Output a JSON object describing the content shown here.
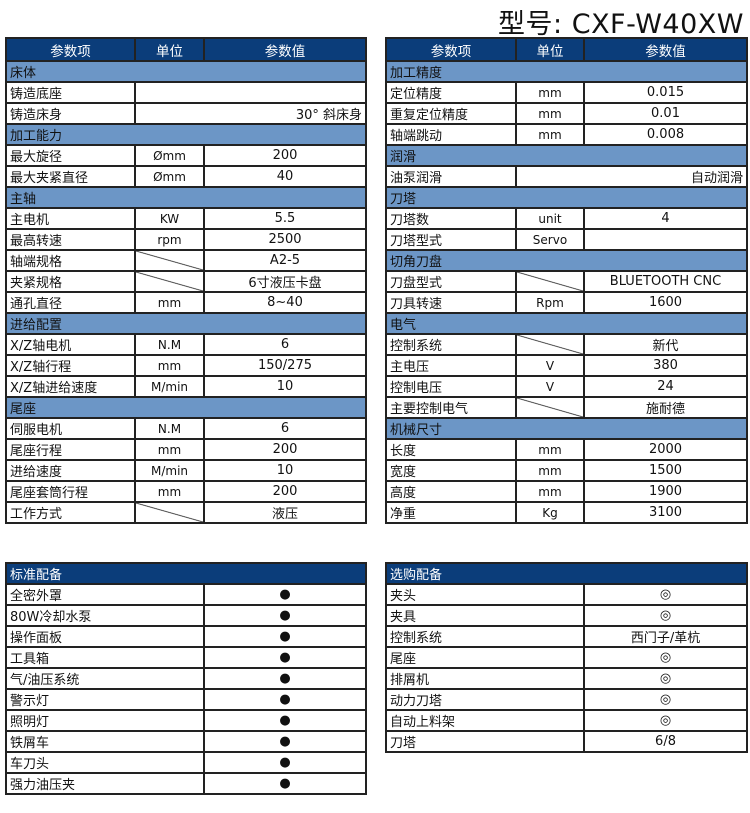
{
  "model_title": "型号: CXF-W40XW",
  "headers": [
    "参数项",
    "单位",
    "参数值"
  ],
  "left_rows": [
    {
      "section": "床体"
    },
    {
      "name": "铸造底座",
      "merged": ""
    },
    {
      "name": "铸造床身",
      "merged": "30°  斜床身"
    },
    {
      "section": "加工能力"
    },
    {
      "name": "最大旋径",
      "unit": "Ømm",
      "value": "200"
    },
    {
      "name": "最大夹紧直径",
      "unit": "Ømm",
      "value": "40"
    },
    {
      "section": "主轴"
    },
    {
      "name": "主电机",
      "unit": "KW",
      "value": "5.5"
    },
    {
      "name": "最高转速",
      "unit": "rpm",
      "value": "2500"
    },
    {
      "name": "轴端规格",
      "unit": "/",
      "value": "A2-5"
    },
    {
      "name": "夹紧规格",
      "unit": "/",
      "value": "6寸液压卡盘"
    },
    {
      "name": "通孔直径",
      "unit": "mm",
      "value": "8~40"
    },
    {
      "section": "进给配置"
    },
    {
      "name": "X/Z轴电机",
      "unit": "N.M",
      "value": "6"
    },
    {
      "name": "X/Z轴行程",
      "unit": "mm",
      "value": "150/275"
    },
    {
      "name": "X/Z轴进给速度",
      "unit": "M/min",
      "value": "10"
    },
    {
      "section": "尾座"
    },
    {
      "name": "伺服电机",
      "unit": "N.M",
      "value": "6"
    },
    {
      "name": "尾座行程",
      "unit": "mm",
      "value": "200"
    },
    {
      "name": "进给速度",
      "unit": "M/min",
      "value": "10"
    },
    {
      "name": "尾座套筒行程",
      "unit": "mm",
      "value": "200"
    },
    {
      "name": "工作方式",
      "unit": "/",
      "value": "液压"
    }
  ],
  "right_rows": [
    {
      "section": "加工精度"
    },
    {
      "name": "定位精度",
      "unit": "mm",
      "value": "0.015"
    },
    {
      "name": "重复定位精度",
      "unit": "mm",
      "value": "0.01"
    },
    {
      "name": "轴端跳动",
      "unit": "mm",
      "value": "0.008"
    },
    {
      "section": "润滑"
    },
    {
      "name": "油泵润滑",
      "merged": "自动润滑"
    },
    {
      "section": "刀塔"
    },
    {
      "name": "刀塔数",
      "unit": "unit",
      "value": "4"
    },
    {
      "name": "刀塔型式",
      "unit": "Servo",
      "value": ""
    },
    {
      "section": "切角刀盘"
    },
    {
      "name": "刀盘型式",
      "unit": "/",
      "value": "BLUETOOTH CNC"
    },
    {
      "name": "刀具转速",
      "unit": "Rpm",
      "value": "1600"
    },
    {
      "section": "电气"
    },
    {
      "name": "控制系统",
      "unit": "/",
      "value": "新代"
    },
    {
      "name": "主电压",
      "unit": "V",
      "value": "380"
    },
    {
      "name": "控制电压",
      "unit": "V",
      "value": "24"
    },
    {
      "name": "主要控制电气",
      "unit": "/",
      "value": "施耐德"
    },
    {
      "section": "机械尺寸"
    },
    {
      "name": "长度",
      "unit": "mm",
      "value": "2000"
    },
    {
      "name": "宽度",
      "unit": "mm",
      "value": "1500"
    },
    {
      "name": "高度",
      "unit": "mm",
      "value": "1900"
    },
    {
      "name": "净重",
      "unit": "Kg",
      "value": "3100"
    }
  ],
  "standard": {
    "title": "标准配备",
    "items": [
      {
        "name": "全密外罩",
        "value": "●"
      },
      {
        "name": "80W冷却水泵",
        "value": "●"
      },
      {
        "name": "操作面板",
        "value": "●"
      },
      {
        "name": "工具箱",
        "value": "●"
      },
      {
        "name": "气/油压系统",
        "value": "●"
      },
      {
        "name": "警示灯",
        "value": "●"
      },
      {
        "name": "照明灯",
        "value": "●"
      },
      {
        "name": "铁屑车",
        "value": "●"
      },
      {
        "name": "车刀头",
        "value": "●"
      },
      {
        "name": "强力油压夹",
        "value": "●"
      }
    ]
  },
  "optional": {
    "title": "选购配备",
    "items": [
      {
        "name": "夹头",
        "value": "◎"
      },
      {
        "name": "夹具",
        "value": "◎"
      },
      {
        "name": "控制系统",
        "value": "西门子/革杭"
      },
      {
        "name": "尾座",
        "value": "◎"
      },
      {
        "name": "排屑机",
        "value": "◎"
      },
      {
        "name": "动力刀塔",
        "value": "◎"
      },
      {
        "name": "自动上料架",
        "value": "◎"
      },
      {
        "name": "刀塔",
        "value": "6/8"
      }
    ]
  }
}
